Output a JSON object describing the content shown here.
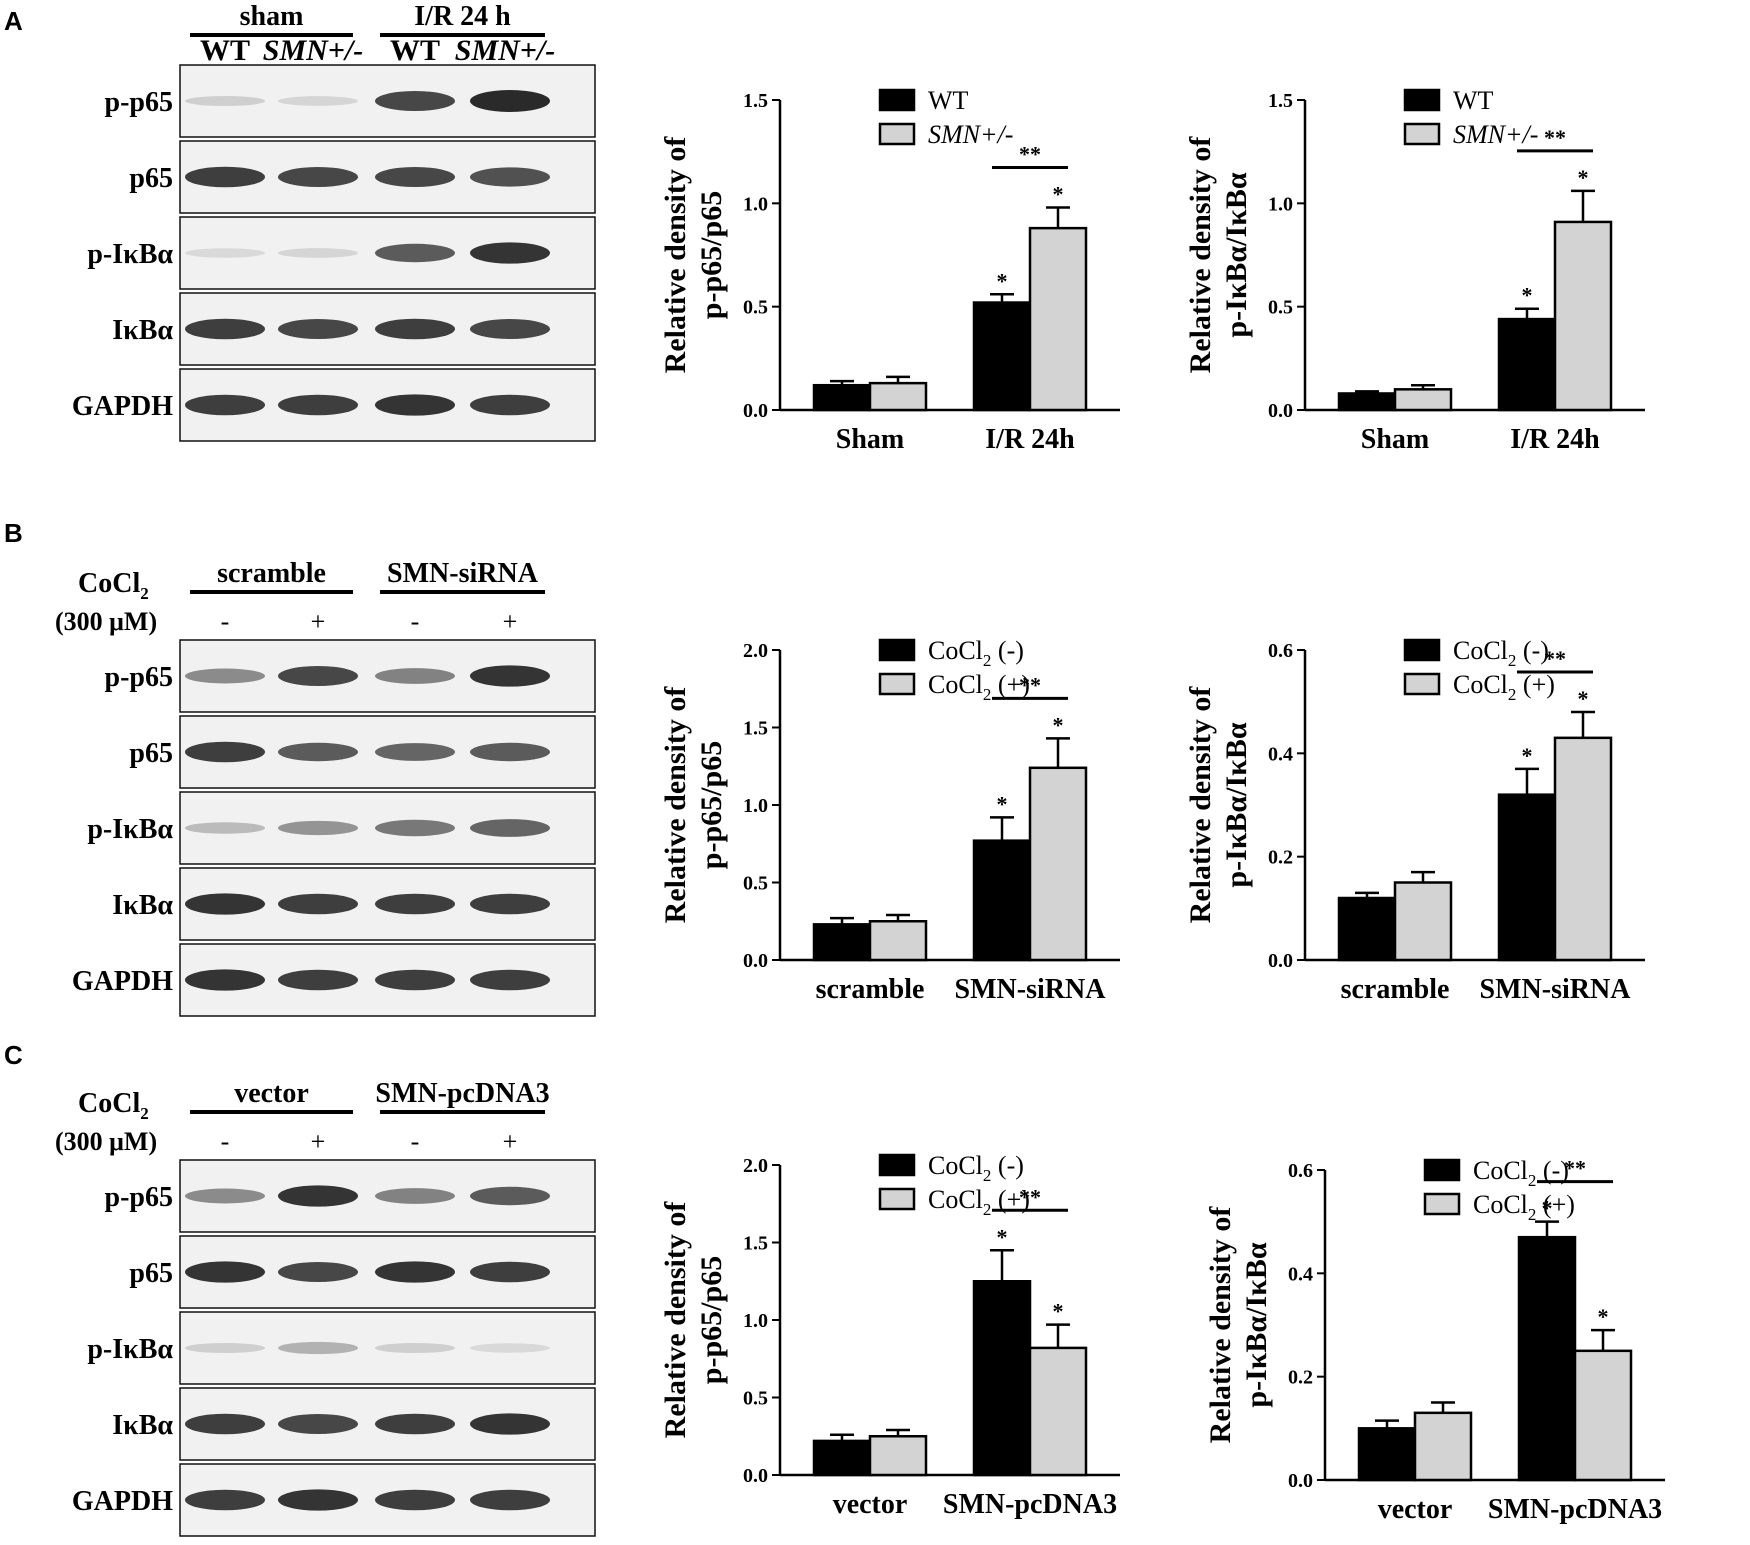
{
  "panels": [
    {
      "letter": "A",
      "blot": {
        "groups": [
          {
            "label": "sham",
            "lanes": [
              0,
              1
            ]
          },
          {
            "label": "I/R 24 h",
            "lanes": [
              2,
              3
            ]
          }
        ],
        "lane_labels": [
          {
            "text": "WT",
            "italic": false
          },
          {
            "text": "SMN+/-",
            "italic": true
          },
          {
            "text": "WT",
            "italic": false
          },
          {
            "text": "SMN+/-",
            "italic": true
          }
        ],
        "treatment": null,
        "rows": [
          {
            "label": "p-p65",
            "intensity": [
              0.15,
              0.12,
              0.85,
              1.0
            ]
          },
          {
            "label": "p65",
            "intensity": [
              0.9,
              0.85,
              0.85,
              0.8
            ]
          },
          {
            "label": "p-IκBα",
            "intensity": [
              0.1,
              0.12,
              0.75,
              0.95
            ]
          },
          {
            "label": "IκBα",
            "intensity": [
              0.9,
              0.85,
              0.9,
              0.85
            ]
          },
          {
            "label": "GAPDH",
            "intensity": [
              0.9,
              0.9,
              0.95,
              0.9
            ]
          }
        ]
      },
      "charts": [
        {
          "type": "bar",
          "ylabel_line1": "Relative density of",
          "ylabel_line2": "p-p65/p65",
          "categories": [
            "Sham",
            "I/R 24h"
          ],
          "legend": [
            {
              "text": "WT",
              "italic": true
            },
            {
              "text": "SMN+/-",
              "italic": true
            }
          ],
          "ylim": [
            0,
            1.5
          ],
          "yticks": [
            "0.0",
            "0.5",
            "1.0",
            "1.5"
          ],
          "series": [
            {
              "values": [
                0.12,
                0.52
              ],
              "errors": [
                0.02,
                0.04
              ],
              "color": "#000000"
            },
            {
              "values": [
                0.13,
                0.88
              ],
              "errors": [
                0.03,
                0.1
              ],
              "color": "#d3d3d3"
            }
          ],
          "stars": [
            {
              "category": 1,
              "series": 0,
              "text": "*"
            },
            {
              "category": 1,
              "series": 1,
              "text": "*"
            }
          ],
          "bracket": {
            "category": 1,
            "text": "**"
          }
        },
        {
          "type": "bar",
          "ylabel_line1": "Relative density of",
          "ylabel_line2": "p-IκBα/IκBα",
          "categories": [
            "Sham",
            "I/R 24h"
          ],
          "legend": [
            {
              "text": "WT",
              "italic": true
            },
            {
              "text": "SMN+/-",
              "italic": true
            }
          ],
          "ylim": [
            0,
            1.5
          ],
          "yticks": [
            "0.0",
            "0.5",
            "1.0",
            "1.5"
          ],
          "series": [
            {
              "values": [
                0.08,
                0.44
              ],
              "errors": [
                0.01,
                0.05
              ],
              "color": "#000000"
            },
            {
              "values": [
                0.1,
                0.91
              ],
              "errors": [
                0.02,
                0.15
              ],
              "color": "#d3d3d3"
            }
          ],
          "stars": [
            {
              "category": 1,
              "series": 0,
              "text": "*"
            },
            {
              "category": 1,
              "series": 1,
              "text": "*"
            }
          ],
          "bracket": {
            "category": 1,
            "text": "**"
          }
        }
      ]
    },
    {
      "letter": "B",
      "blot": {
        "groups": [
          {
            "label": "scramble",
            "lanes": [
              0,
              1
            ]
          },
          {
            "label": "SMN-siRNA",
            "lanes": [
              2,
              3
            ]
          }
        ],
        "lane_labels": [
          {
            "text": "-",
            "italic": false
          },
          {
            "text": "+",
            "italic": false
          },
          {
            "text": "-",
            "italic": false
          },
          {
            "text": "+",
            "italic": false
          }
        ],
        "treatment": {
          "line1": "CoCl",
          "sub": "2",
          "line2": "(300 μM)"
        },
        "rows": [
          {
            "label": "p-p65",
            "intensity": [
              0.5,
              0.85,
              0.55,
              0.95
            ]
          },
          {
            "label": "p65",
            "intensity": [
              0.9,
              0.75,
              0.7,
              0.75
            ]
          },
          {
            "label": "p-IκBα",
            "intensity": [
              0.25,
              0.45,
              0.6,
              0.7
            ]
          },
          {
            "label": "IκBα",
            "intensity": [
              0.95,
              0.9,
              0.9,
              0.9
            ]
          },
          {
            "label": "GAPDH",
            "intensity": [
              0.95,
              0.9,
              0.9,
              0.9
            ]
          }
        ]
      },
      "charts": [
        {
          "type": "bar",
          "ylabel_line1": "Relative density of",
          "ylabel_line2": "p-p65/p65",
          "categories": [
            "scramble",
            "SMN-siRNA"
          ],
          "legend": [
            {
              "text": "CoCl",
              "sub": "2",
              "after": " (-)"
            },
            {
              "text": "CoCl",
              "sub": "2",
              "after": " (+)"
            }
          ],
          "ylim": [
            0,
            2.0
          ],
          "yticks": [
            "0.0",
            "0.5",
            "1.0",
            "1.5",
            "2.0"
          ],
          "series": [
            {
              "values": [
                0.23,
                0.77
              ],
              "errors": [
                0.04,
                0.15
              ],
              "color": "#000000"
            },
            {
              "values": [
                0.25,
                1.24
              ],
              "errors": [
                0.04,
                0.19
              ],
              "color": "#d3d3d3"
            }
          ],
          "stars": [
            {
              "category": 1,
              "series": 0,
              "text": "*"
            },
            {
              "category": 1,
              "series": 1,
              "text": "*"
            }
          ],
          "bracket": {
            "category": 1,
            "text": "**"
          }
        },
        {
          "type": "bar",
          "ylabel_line1": "Relative density of",
          "ylabel_line2": "p-IκBα/IκBα",
          "categories": [
            "scramble",
            "SMN-siRNA"
          ],
          "legend": [
            {
              "text": "CoCl",
              "sub": "2",
              "after": " (-)"
            },
            {
              "text": "CoCl",
              "sub": "2",
              "after": " (+)"
            }
          ],
          "ylim": [
            0,
            0.6
          ],
          "yticks": [
            "0.0",
            "0.2",
            "0.4",
            "0.6"
          ],
          "series": [
            {
              "values": [
                0.12,
                0.32
              ],
              "errors": [
                0.01,
                0.05
              ],
              "color": "#000000"
            },
            {
              "values": [
                0.15,
                0.43
              ],
              "errors": [
                0.02,
                0.05
              ],
              "color": "#d3d3d3"
            }
          ],
          "stars": [
            {
              "category": 1,
              "series": 0,
              "text": "*"
            },
            {
              "category": 1,
              "series": 1,
              "text": "*"
            }
          ],
          "bracket": {
            "category": 1,
            "text": "**"
          }
        }
      ]
    },
    {
      "letter": "C",
      "blot": {
        "groups": [
          {
            "label": "vector",
            "lanes": [
              0,
              1
            ]
          },
          {
            "label": "SMN-pcDNA3",
            "lanes": [
              2,
              3
            ]
          }
        ],
        "lane_labels": [
          {
            "text": "-",
            "italic": false
          },
          {
            "text": "+",
            "italic": false
          },
          {
            "text": "-",
            "italic": false
          },
          {
            "text": "+",
            "italic": false
          }
        ],
        "treatment": {
          "line1": "CoCl",
          "sub": "2",
          "line2": "(300 μM)"
        },
        "rows": [
          {
            "label": "p-p65",
            "intensity": [
              0.5,
              0.95,
              0.55,
              0.75
            ]
          },
          {
            "label": "p65",
            "intensity": [
              0.95,
              0.85,
              0.95,
              0.9
            ]
          },
          {
            "label": "p-IκBα",
            "intensity": [
              0.15,
              0.3,
              0.15,
              0.1
            ]
          },
          {
            "label": "IκBα",
            "intensity": [
              0.9,
              0.85,
              0.9,
              0.95
            ]
          },
          {
            "label": "GAPDH",
            "intensity": [
              0.9,
              0.95,
              0.9,
              0.9
            ]
          }
        ]
      },
      "charts": [
        {
          "type": "bar",
          "ylabel_line1": "Relative density of",
          "ylabel_line2": "p-p65/p65",
          "categories": [
            "vector",
            "SMN-pcDNA3"
          ],
          "legend": [
            {
              "text": "CoCl",
              "sub": "2",
              "after": " (-)"
            },
            {
              "text": "CoCl",
              "sub": "2",
              "after": " (+)"
            }
          ],
          "ylim": [
            0,
            2.0
          ],
          "yticks": [
            "0.0",
            "0.5",
            "1.0",
            "1.5",
            "2.0"
          ],
          "series": [
            {
              "values": [
                0.22,
                1.25
              ],
              "errors": [
                0.04,
                0.2
              ],
              "color": "#000000"
            },
            {
              "values": [
                0.25,
                0.82
              ],
              "errors": [
                0.04,
                0.15
              ],
              "color": "#d3d3d3"
            }
          ],
          "stars": [
            {
              "category": 1,
              "series": 0,
              "text": "*"
            },
            {
              "category": 1,
              "series": 1,
              "text": "*"
            }
          ],
          "bracket": {
            "category": 1,
            "text": "**"
          }
        },
        {
          "type": "bar",
          "ylabel_line1": "Relative density of",
          "ylabel_line2": "p-IκBα/IκBα",
          "categories": [
            "vector",
            "SMN-pcDNA3"
          ],
          "legend": [
            {
              "text": "CoCl",
              "sub": "2",
              "after": " (-)"
            },
            {
              "text": "CoCl",
              "sub": "2",
              "after": " (+)"
            }
          ],
          "ylim": [
            0,
            0.6
          ],
          "yticks": [
            "0.0",
            "0.2",
            "0.4",
            "0.6"
          ],
          "series": [
            {
              "values": [
                0.1,
                0.47
              ],
              "errors": [
                0.015,
                0.03
              ],
              "color": "#000000"
            },
            {
              "values": [
                0.13,
                0.25
              ],
              "errors": [
                0.02,
                0.04
              ],
              "color": "#d3d3d3"
            }
          ],
          "stars": [
            {
              "category": 1,
              "series": 0,
              "text": "*"
            },
            {
              "category": 1,
              "series": 1,
              "text": "*"
            }
          ],
          "bracket": {
            "category": 1,
            "text": "**"
          }
        }
      ]
    }
  ],
  "chart_data": [
    {
      "type": "bar",
      "categories": [
        "Sham",
        "I/R 24h"
      ],
      "ylabel": "Relative density of p-p65/p65",
      "ylim": [
        0,
        1.5
      ],
      "series": [
        {
          "name": "WT",
          "values": [
            0.12,
            0.52
          ]
        },
        {
          "name": "SMN+/-",
          "values": [
            0.13,
            0.88
          ]
        }
      ]
    },
    {
      "type": "bar",
      "categories": [
        "Sham",
        "I/R 24h"
      ],
      "ylabel": "Relative density of p-IκBα/IκBα",
      "ylim": [
        0,
        1.5
      ],
      "series": [
        {
          "name": "WT",
          "values": [
            0.08,
            0.44
          ]
        },
        {
          "name": "SMN+/-",
          "values": [
            0.1,
            0.91
          ]
        }
      ]
    },
    {
      "type": "bar",
      "categories": [
        "scramble",
        "SMN-siRNA"
      ],
      "ylabel": "Relative density of p-p65/p65",
      "ylim": [
        0,
        2.0
      ],
      "series": [
        {
          "name": "CoCl2 (-)",
          "values": [
            0.23,
            0.77
          ]
        },
        {
          "name": "CoCl2 (+)",
          "values": [
            0.25,
            1.24
          ]
        }
      ]
    },
    {
      "type": "bar",
      "categories": [
        "scramble",
        "SMN-siRNA"
      ],
      "ylabel": "Relative density of p-IκBα/IκBα",
      "ylim": [
        0,
        0.6
      ],
      "series": [
        {
          "name": "CoCl2 (-)",
          "values": [
            0.12,
            0.32
          ]
        },
        {
          "name": "CoCl2 (+)",
          "values": [
            0.15,
            0.43
          ]
        }
      ]
    },
    {
      "type": "bar",
      "categories": [
        "vector",
        "SMN-pcDNA3"
      ],
      "ylabel": "Relative density of p-p65/p65",
      "ylim": [
        0,
        2.0
      ],
      "series": [
        {
          "name": "CoCl2 (-)",
          "values": [
            0.22,
            1.25
          ]
        },
        {
          "name": "CoCl2 (+)",
          "values": [
            0.25,
            0.82
          ]
        }
      ]
    },
    {
      "type": "bar",
      "categories": [
        "vector",
        "SMN-pcDNA3"
      ],
      "ylabel": "Relative density of p-IκBα/IκBα",
      "ylim": [
        0,
        0.6
      ],
      "series": [
        {
          "name": "CoCl2 (-)",
          "values": [
            0.1,
            0.47
          ]
        },
        {
          "name": "CoCl2 (+)",
          "values": [
            0.13,
            0.25
          ]
        }
      ]
    }
  ]
}
